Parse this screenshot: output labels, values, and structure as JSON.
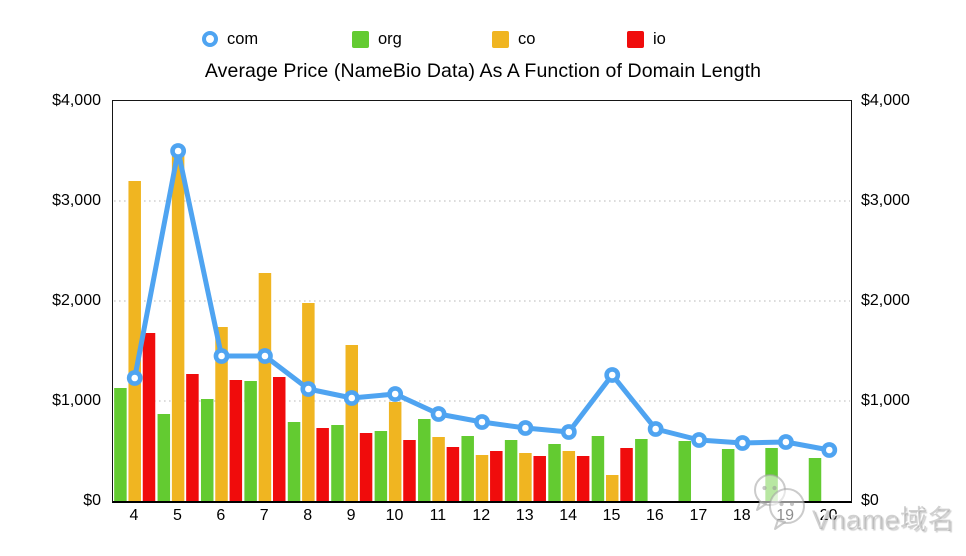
{
  "watermark": {
    "text": "Vname域名"
  },
  "chart_data": {
    "type": "combo",
    "title": "Average Price (NameBio Data) As A Function of Domain Length",
    "xlabel": "",
    "ylabel": "",
    "ylim": [
      0,
      4000
    ],
    "y_tick_step": 1000,
    "y_ticks": [
      "$4,000",
      "$3,000",
      "$2,000",
      "$1,000",
      "$0"
    ],
    "y_axis_sides": [
      "left",
      "right"
    ],
    "grid": "horizontal dotted lines at 1000, 2000, 3000",
    "legend_position": "top",
    "categories": [
      4,
      5,
      6,
      7,
      8,
      9,
      10,
      11,
      12,
      13,
      14,
      15,
      16,
      17,
      18,
      19,
      20
    ],
    "series": [
      {
        "name": "com",
        "type": "line",
        "color": "#4FA4F1",
        "values": [
          1230,
          3500,
          1450,
          1450,
          1120,
          1030,
          1070,
          870,
          790,
          730,
          690,
          1260,
          720,
          610,
          580,
          590,
          510
        ]
      },
      {
        "name": "org",
        "type": "bar",
        "color": "#63CB31",
        "values": [
          1130,
          870,
          1020,
          1200,
          790,
          760,
          700,
          820,
          650,
          610,
          570,
          650,
          620,
          600,
          520,
          530,
          430
        ]
      },
      {
        "name": "co",
        "type": "bar",
        "color": "#F0B521",
        "values": [
          3200,
          3450,
          1740,
          2280,
          1980,
          1560,
          990,
          640,
          460,
          480,
          500,
          260,
          null,
          null,
          null,
          null,
          null
        ]
      },
      {
        "name": "io",
        "type": "bar",
        "color": "#F00C0C",
        "values": [
          1680,
          1270,
          1210,
          1240,
          730,
          680,
          610,
          540,
          500,
          450,
          450,
          530,
          null,
          null,
          null,
          null,
          null
        ]
      }
    ]
  }
}
